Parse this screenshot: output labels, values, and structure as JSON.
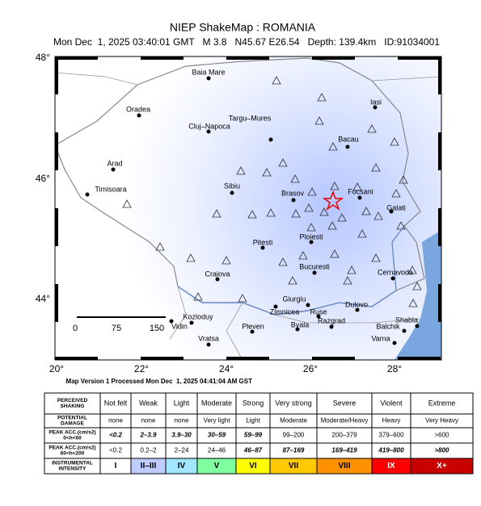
{
  "header": {
    "title": "NIEP ShakeMap : ROMANIA",
    "subtitle": "Mon Dec  1, 2025 03:40:01 GMT   M 3.8   N45.67 E26.54   Depth: 139.4km   ID:91034001"
  },
  "map": {
    "lat_labels": [
      "48°",
      "46°",
      "44°"
    ],
    "lon_labels": [
      "20°",
      "22°",
      "24°",
      "26°",
      "28°"
    ],
    "scale_labels": [
      "0",
      "75",
      "150"
    ],
    "cities": [
      "Baia Mare",
      "Oradea",
      "Cluj–Napoca",
      "Targu–Mures",
      "Iasi",
      "Bacau",
      "Arad",
      "Timisoara",
      "Sibiu",
      "Brasov",
      "Focsani",
      "Galati",
      "Ploiesti",
      "Pitesti",
      "Bucuresti",
      "Craiova",
      "Cernavoda",
      "Giurgiu",
      "Dulovo",
      "Zimnicea",
      "Ruse",
      "Kozloduy",
      "Vidin",
      "Razgrad",
      "Shabla",
      "Byala",
      "Balchik",
      "Pleven",
      "Varna",
      "Vratsa"
    ]
  },
  "footer": "Map Version 1 Processed Mon Dec  1, 2025 04:41:04 AM GST",
  "legend": {
    "rows": [
      {
        "label": [
          "PERCEIVED",
          "SHAKING"
        ],
        "cells": [
          "Not felt",
          "Weak",
          "Light",
          "Moderate",
          "Strong",
          "Very strong",
          "Severe",
          "Violent",
          "Extreme"
        ]
      },
      {
        "label": [
          "POTENTIAL",
          "DAMAGE"
        ],
        "cells": [
          "none",
          "none",
          "none",
          "Very light",
          "Light",
          "Moderate",
          "Moderate/Heavy",
          "Heavy",
          "Very Heavy"
        ]
      },
      {
        "label": [
          "PEAK ACC.(cm/s2)",
          "0<h<60"
        ],
        "cells": [
          "<0.2",
          "2–3.9",
          "3.9–30",
          "30–59",
          "59–99",
          "99–200",
          "200–379",
          "379–600",
          ">600"
        ]
      },
      {
        "label": [
          "PEAK ACC.(cm/s2)",
          "60<h<200"
        ],
        "cells": [
          "<0.2",
          "0.2–2",
          "2–24",
          "24–46",
          "46–87",
          "87–169",
          "169–419",
          "419–800",
          ">800"
        ]
      },
      {
        "label": [
          "INSTRUMENTAL",
          "INTENSITY"
        ],
        "cells": [
          "I",
          "II–III",
          "IV",
          "V",
          "VI",
          "VII",
          "VIII",
          "IX",
          "X+"
        ]
      }
    ],
    "colors": [
      "#ffffff",
      "#bfccff",
      "#a0e6ff",
      "#80ffa0",
      "#ffff00",
      "#ffc800",
      "#ff9100",
      "#ff0000",
      "#c80000"
    ]
  }
}
